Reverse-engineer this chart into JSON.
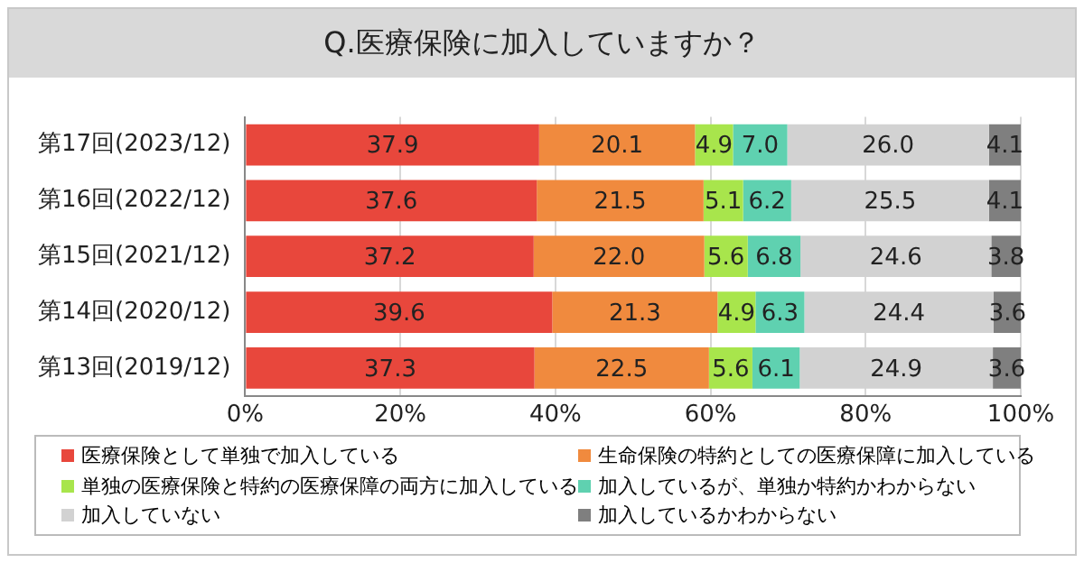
{
  "chart_data": {
    "type": "bar",
    "orientation": "horizontal",
    "stacked": true,
    "title": "Q.医療保険に加入していますか？",
    "categories": [
      "第17回(2023/12)",
      "第16回(2022/12)",
      "第15回(2021/12)",
      "第14回(2020/12)",
      "第13回(2019/12)"
    ],
    "series": [
      {
        "name": "医療保険として単独で加入している",
        "color": "#e8473c",
        "values": [
          37.9,
          37.6,
          37.2,
          39.6,
          37.3
        ],
        "value_labels": [
          "37.9",
          "37.6",
          "37.2",
          "39.6",
          "37.3"
        ]
      },
      {
        "name": "生命保険の特約としての医療保障に加入している",
        "color": "#f08a3e",
        "values": [
          20.1,
          21.5,
          22.0,
          21.3,
          22.5
        ],
        "value_labels": [
          "20.1",
          "21.5",
          "22.0",
          "21.3",
          "22.5"
        ]
      },
      {
        "name": "単独の医療保険と特約の医療保障の両方に加入している",
        "color": "#a8e54c",
        "values": [
          4.9,
          5.1,
          5.6,
          4.9,
          5.6
        ],
        "value_labels": [
          "4.9",
          "5.1",
          "5.6",
          "4.9",
          "5.6"
        ]
      },
      {
        "name": "加入しているが、単独か特約かわからない",
        "color": "#5fd1b0",
        "values": [
          7.0,
          6.2,
          6.8,
          6.3,
          6.1
        ],
        "value_labels": [
          "7.0",
          "6.2",
          "6.8",
          "6.3",
          "6.1"
        ]
      },
      {
        "name": "加入していない",
        "color": "#d2d2d2",
        "values": [
          26.0,
          25.5,
          24.6,
          24.4,
          24.9
        ],
        "value_labels": [
          "26.0",
          "25.5",
          "24.6",
          "24.4",
          "24.9"
        ]
      },
      {
        "name": "加入しているかわからない",
        "color": "#7f7f7f",
        "values": [
          4.1,
          4.1,
          3.8,
          3.6,
          3.6
        ],
        "value_labels": [
          "4.1",
          "4.1",
          "3.8",
          "3.6",
          "3.6"
        ]
      }
    ],
    "xlim": [
      0,
      100
    ],
    "xticks": [
      {
        "value": 0,
        "label": "0%"
      },
      {
        "value": 20,
        "label": "20%"
      },
      {
        "value": 40,
        "label": "40%"
      },
      {
        "value": 60,
        "label": "60%"
      },
      {
        "value": 80,
        "label": "80%"
      },
      {
        "value": 100,
        "label": "100%"
      }
    ],
    "grid": "x",
    "legend": "bottom"
  }
}
